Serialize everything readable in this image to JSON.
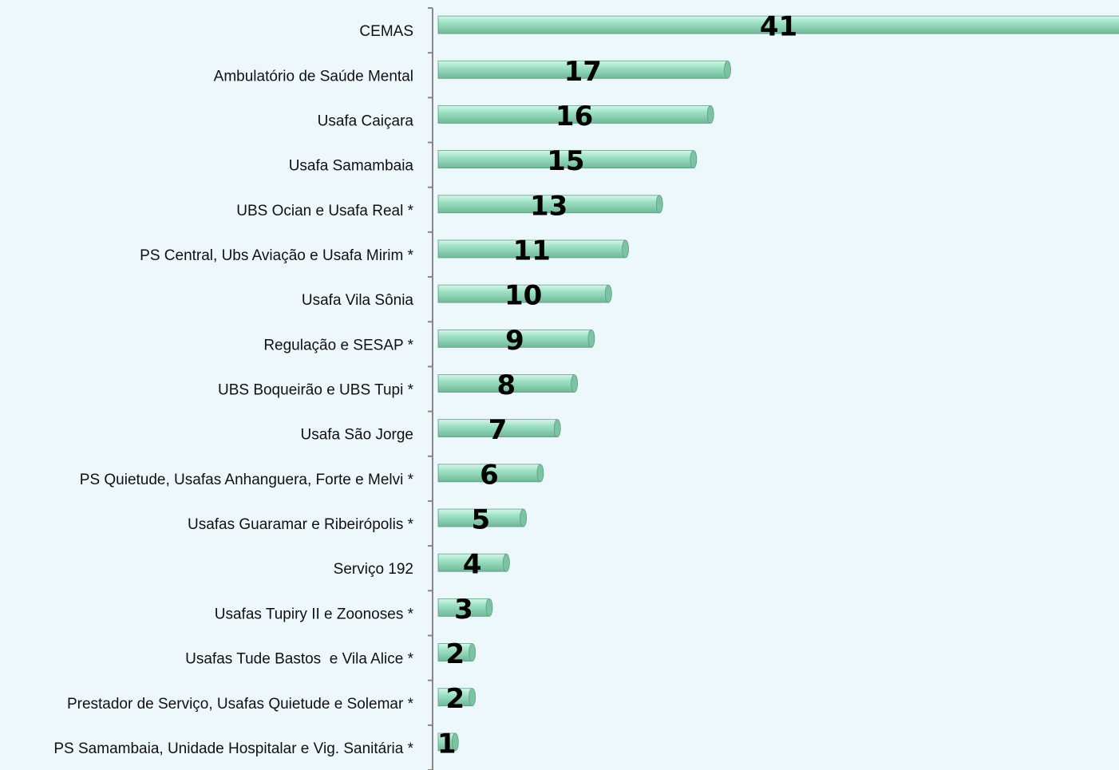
{
  "chart_data": {
    "type": "barh",
    "categories": [
      "CEMAS",
      "Ambulatório de Saúde Mental",
      "Usafa Caiçara",
      "Usafa Samambaia",
      "UBS Ocian e Usafa Real *",
      "PS Central, Ubs Aviação e Usafa Mirim *",
      "Usafa Vila Sônia",
      "Regulação e SESAP *",
      "UBS Boqueirão e UBS Tupi *",
      "Usafa São Jorge",
      "PS Quietude, Usafas Anhanguera, Forte e Melvi *",
      "Usafas Guaramar e Ribeirópolis *",
      "Serviço 192",
      "Usafas Tupiry II e Zoonoses *",
      "Usafas Tude Bastos  e Vila Alice *",
      "Prestador de Serviço, Usafas Quietude e Solemar *",
      "PS Samambaia, Unidade Hospitalar e Vig. Sanitária *"
    ],
    "values": [
      41,
      17,
      16,
      15,
      13,
      11,
      10,
      9,
      8,
      7,
      6,
      5,
      4,
      3,
      2,
      2,
      1
    ],
    "color": "#9fe3c6",
    "xlim": [
      0,
      40
    ]
  }
}
